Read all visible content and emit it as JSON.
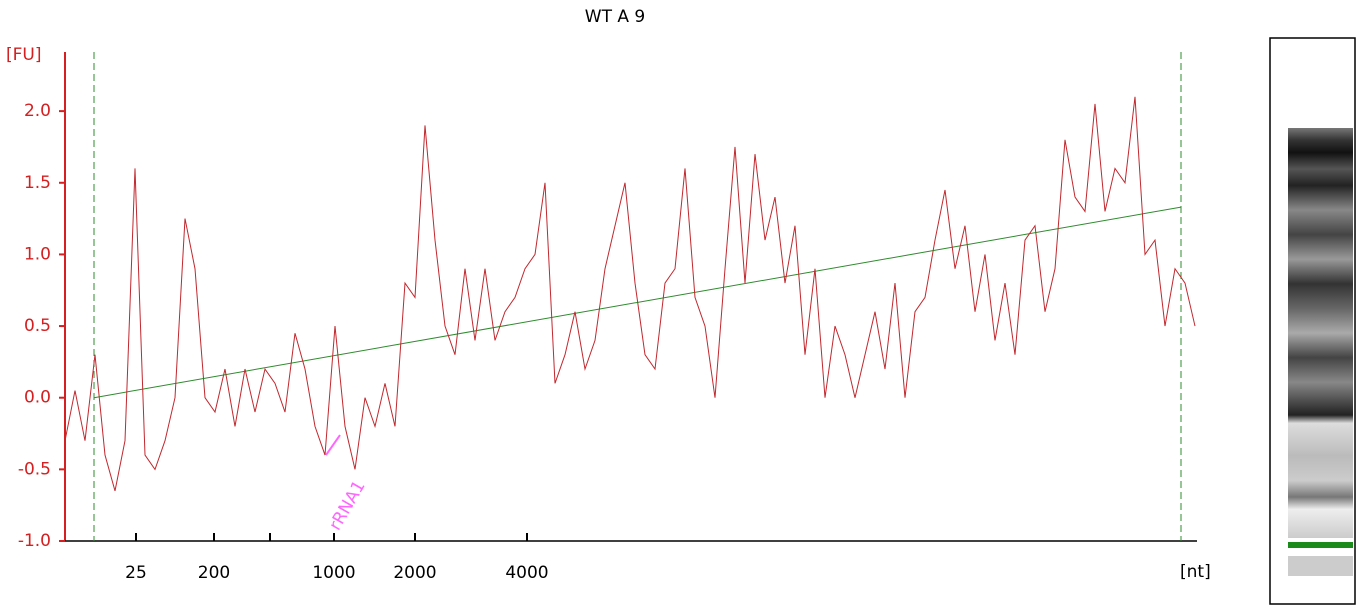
{
  "chart_data": {
    "type": "line",
    "title": "WT A 9",
    "y_label": "[FU]",
    "x_label": "[nt]",
    "series": [
      {
        "color": "#c0282e",
        "values": [
          -0.3,
          0.05,
          -0.3,
          0.3,
          -0.4,
          -0.65,
          -0.3,
          1.6,
          -0.4,
          -0.5,
          -0.3,
          0.0,
          1.25,
          0.9,
          0.0,
          -0.1,
          0.2,
          -0.2,
          0.2,
          -0.1,
          0.2,
          0.1,
          -0.1,
          0.45,
          0.2,
          -0.2,
          -0.4,
          0.5,
          -0.2,
          -0.5,
          0.0,
          -0.2,
          0.1,
          -0.2,
          0.8,
          0.7,
          1.9,
          1.1,
          0.5,
          0.3,
          0.9,
          0.4,
          0.9,
          0.4,
          0.6,
          0.7,
          0.9,
          1.0,
          1.5,
          0.1,
          0.3,
          0.6,
          0.2,
          0.4,
          0.9,
          1.2,
          1.5,
          0.8,
          0.3,
          0.2,
          0.8,
          0.9,
          1.6,
          0.7,
          0.5,
          0.0,
          0.9,
          1.75,
          0.8,
          1.7,
          1.1,
          1.4,
          0.8,
          1.2,
          0.3,
          0.9,
          0.0,
          0.5,
          0.3,
          0.0,
          0.3,
          0.6,
          0.2,
          0.8,
          0.0,
          0.6,
          0.7,
          1.1,
          1.45,
          0.9,
          1.2,
          0.6,
          1.0,
          0.4,
          0.8,
          0.3,
          1.1,
          1.2,
          0.6,
          0.9,
          1.8,
          1.4,
          1.3,
          2.05,
          1.3,
          1.6,
          1.5,
          2.1,
          1.0,
          1.1,
          0.5,
          0.9,
          0.8,
          0.5
        ]
      }
    ],
    "baseline": {
      "color": "#2e8b2e",
      "x": [
        2.9,
        111.6
      ],
      "values": [
        0.0,
        1.33
      ]
    },
    "markers": {
      "color": "#2e8b2e",
      "x": [
        2.9,
        111.6
      ]
    },
    "annotation": {
      "text": "rRNA1",
      "color": "#ff66ff",
      "x": 26.9,
      "y": -0.4
    },
    "axis_color": "#d42020",
    "xlim": [
      0,
      113
    ],
    "ylim": [
      -1.0,
      2.4
    ],
    "xticks": [
      {
        "value": 7.1,
        "label": "25"
      },
      {
        "value": 14.9,
        "label": "200"
      },
      {
        "value": 20.5,
        "label": null
      },
      {
        "value": 26.9,
        "label": "1000"
      },
      {
        "value": 35.0,
        "label": "2000"
      },
      {
        "value": 46.2,
        "label": "4000"
      }
    ],
    "yticks": [
      {
        "value": -1.0,
        "label": "-1.0"
      },
      {
        "value": -0.5,
        "label": "-0.5"
      },
      {
        "value": 0.0,
        "label": "0.0"
      },
      {
        "value": 0.5,
        "label": "0.5"
      },
      {
        "value": 1.0,
        "label": "1.0"
      },
      {
        "value": 1.5,
        "label": "1.5"
      },
      {
        "value": 2.0,
        "label": "2.0"
      }
    ]
  }
}
